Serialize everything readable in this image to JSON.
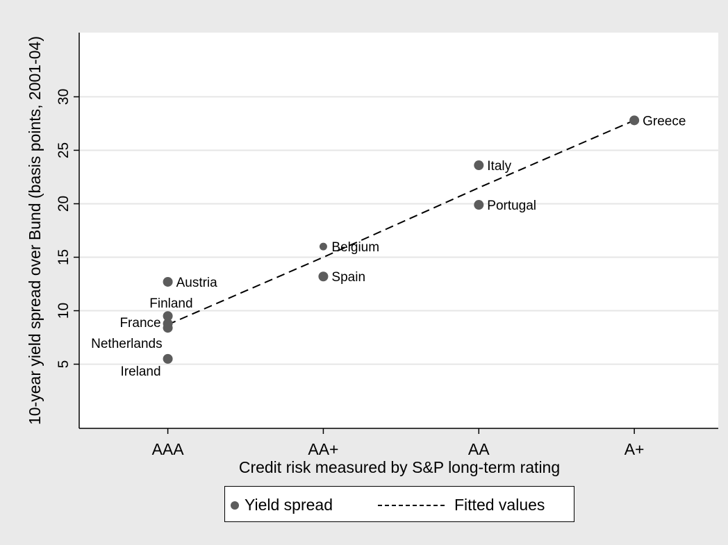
{
  "chart_data": {
    "type": "scatter",
    "title": "",
    "xlabel": "Credit risk measured by S&P long-term rating",
    "ylabel": "10-year yield spread over Bund (basis points, 2001-04)",
    "x_categories": [
      "AAA",
      "AA+",
      "AA",
      "A+"
    ],
    "y_ticks": [
      5,
      10,
      15,
      20,
      25,
      30
    ],
    "ylim": [
      -1,
      36
    ],
    "xlim": [
      -0.57,
      3.54
    ],
    "grid": true,
    "legend_position": "bottom",
    "series": [
      {
        "name": "Yield spread",
        "kind": "points",
        "color": "#5c5c5c",
        "points": [
          {
            "label": "Austria",
            "x": "AAA",
            "y": 12.7
          },
          {
            "label": "Finland",
            "x": "AAA",
            "y": 9.5
          },
          {
            "label": "France",
            "x": "AAA",
            "y": 8.8
          },
          {
            "label": "Netherlands",
            "x": "AAA",
            "y": 8.4
          },
          {
            "label": "Ireland",
            "x": "AAA",
            "y": 5.5
          },
          {
            "label": "Belgium",
            "x": "AA+",
            "y": 16.0
          },
          {
            "label": "Spain",
            "x": "AA+",
            "y": 13.2
          },
          {
            "label": "Italy",
            "x": "AA",
            "y": 23.6
          },
          {
            "label": "Portugal",
            "x": "AA",
            "y": 19.9
          },
          {
            "label": "Greece",
            "x": "A+",
            "y": 27.8
          }
        ]
      },
      {
        "name": "Fitted values",
        "kind": "dashed-line",
        "color": "#000000",
        "points": [
          {
            "x": "AAA",
            "y": 8.7
          },
          {
            "x": "AA+",
            "y": 15.0
          },
          {
            "x": "AA",
            "y": 21.5
          },
          {
            "x": "A+",
            "y": 27.8
          }
        ]
      }
    ]
  }
}
